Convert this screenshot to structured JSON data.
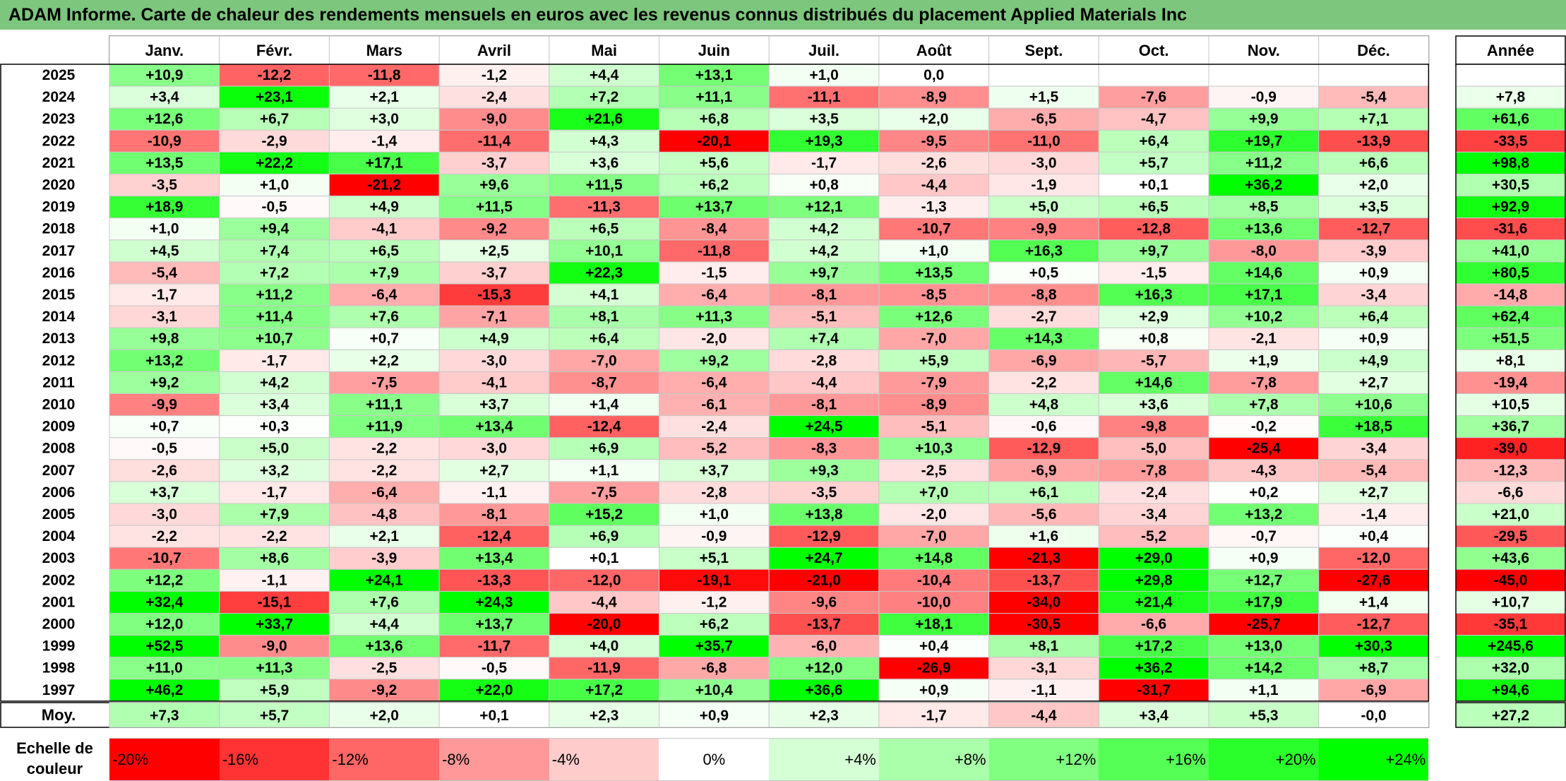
{
  "title": "ADAM Informe. Carte de chaleur des rendements mensuels en euros avec les revenus connus distribués du placement Applied Materials Inc",
  "colors": {
    "title_bg": "#7dc67d",
    "max_red": "#ff0000",
    "neutral": "#ffffff",
    "max_green": "#00ff00"
  },
  "chart_data": {
    "type": "heatmap",
    "months": [
      "Janv.",
      "Févr.",
      "Mars",
      "Avril",
      "Mai",
      "Juin",
      "Juil.",
      "Août",
      "Sept.",
      "Oct.",
      "Nov.",
      "Déc."
    ],
    "year_header": "Année",
    "rows": [
      {
        "year": "2025",
        "values": [
          "+10,9",
          "-12,2",
          "-11,8",
          "-1,2",
          "+4,4",
          "+13,1",
          "+1,0",
          "0,0",
          "",
          "",
          "",
          ""
        ],
        "annual": ""
      },
      {
        "year": "2024",
        "values": [
          "+3,4",
          "+23,1",
          "+2,1",
          "-2,4",
          "+7,2",
          "+11,1",
          "-11,1",
          "-8,9",
          "+1,5",
          "-7,6",
          "-0,9",
          "-5,4"
        ],
        "annual": "+7,8"
      },
      {
        "year": "2023",
        "values": [
          "+12,6",
          "+6,7",
          "+3,0",
          "-9,0",
          "+21,6",
          "+6,8",
          "+3,5",
          "+2,0",
          "-6,5",
          "-4,7",
          "+9,9",
          "+7,1"
        ],
        "annual": "+61,6"
      },
      {
        "year": "2022",
        "values": [
          "-10,9",
          "-2,9",
          "-1,4",
          "-11,4",
          "+4,3",
          "-20,1",
          "+19,3",
          "-9,5",
          "-11,0",
          "+6,4",
          "+19,7",
          "-13,9"
        ],
        "annual": "-33,5"
      },
      {
        "year": "2021",
        "values": [
          "+13,5",
          "+22,2",
          "+17,1",
          "-3,7",
          "+3,6",
          "+5,6",
          "-1,7",
          "-2,6",
          "-3,0",
          "+5,7",
          "+11,2",
          "+6,6"
        ],
        "annual": "+98,8"
      },
      {
        "year": "2020",
        "values": [
          "-3,5",
          "+1,0",
          "-21,2",
          "+9,6",
          "+11,5",
          "+6,2",
          "+0,8",
          "-4,4",
          "-1,9",
          "+0,1",
          "+36,2",
          "+2,0"
        ],
        "annual": "+30,5"
      },
      {
        "year": "2019",
        "values": [
          "+18,9",
          "-0,5",
          "+4,9",
          "+11,5",
          "-11,3",
          "+13,7",
          "+12,1",
          "-1,3",
          "+5,0",
          "+6,5",
          "+8,5",
          "+3,5"
        ],
        "annual": "+92,9"
      },
      {
        "year": "2018",
        "values": [
          "+1,0",
          "+9,4",
          "-4,1",
          "-9,2",
          "+6,5",
          "-8,4",
          "+4,2",
          "-10,7",
          "-9,9",
          "-12,8",
          "+13,6",
          "-12,7"
        ],
        "annual": "-31,6"
      },
      {
        "year": "2017",
        "values": [
          "+4,5",
          "+7,4",
          "+6,5",
          "+2,5",
          "+10,1",
          "-11,8",
          "+4,2",
          "+1,0",
          "+16,3",
          "+9,7",
          "-8,0",
          "-3,9"
        ],
        "annual": "+41,0"
      },
      {
        "year": "2016",
        "values": [
          "-5,4",
          "+7,2",
          "+7,9",
          "-3,7",
          "+22,3",
          "-1,5",
          "+9,7",
          "+13,5",
          "+0,5",
          "-1,5",
          "+14,6",
          "+0,9"
        ],
        "annual": "+80,5"
      },
      {
        "year": "2015",
        "values": [
          "-1,7",
          "+11,2",
          "-6,4",
          "-15,3",
          "+4,1",
          "-6,4",
          "-8,1",
          "-8,5",
          "-8,8",
          "+16,3",
          "+17,1",
          "-3,4"
        ],
        "annual": "-14,8"
      },
      {
        "year": "2014",
        "values": [
          "-3,1",
          "+11,4",
          "+7,6",
          "-7,1",
          "+8,1",
          "+11,3",
          "-5,1",
          "+12,6",
          "-2,7",
          "+2,9",
          "+10,2",
          "+6,4"
        ],
        "annual": "+62,4"
      },
      {
        "year": "2013",
        "values": [
          "+9,8",
          "+10,7",
          "+0,7",
          "+4,9",
          "+6,4",
          "-2,0",
          "+7,4",
          "-7,0",
          "+14,3",
          "+0,8",
          "-2,1",
          "+0,9"
        ],
        "annual": "+51,5"
      },
      {
        "year": "2012",
        "values": [
          "+13,2",
          "-1,7",
          "+2,2",
          "-3,0",
          "-7,0",
          "+9,2",
          "-2,8",
          "+5,9",
          "-6,9",
          "-5,7",
          "+1,9",
          "+4,9"
        ],
        "annual": "+8,1"
      },
      {
        "year": "2011",
        "values": [
          "+9,2",
          "+4,2",
          "-7,5",
          "-4,1",
          "-8,7",
          "-6,4",
          "-4,4",
          "-7,9",
          "-2,2",
          "+14,6",
          "-7,8",
          "+2,7"
        ],
        "annual": "-19,4"
      },
      {
        "year": "2010",
        "values": [
          "-9,9",
          "+3,4",
          "+11,1",
          "+3,7",
          "+1,4",
          "-6,1",
          "-8,1",
          "-8,9",
          "+4,8",
          "+3,6",
          "+7,8",
          "+10,6"
        ],
        "annual": "+10,5"
      },
      {
        "year": "2009",
        "values": [
          "+0,7",
          "+0,3",
          "+11,9",
          "+13,4",
          "-12,4",
          "-2,4",
          "+24,5",
          "-5,1",
          "-0,6",
          "-9,8",
          "-0,2",
          "+18,5"
        ],
        "annual": "+36,7"
      },
      {
        "year": "2008",
        "values": [
          "-0,5",
          "+5,0",
          "-2,2",
          "-3,0",
          "+6,9",
          "-5,2",
          "-8,3",
          "+10,3",
          "-12,9",
          "-5,0",
          "-25,4",
          "-3,4"
        ],
        "annual": "-39,0"
      },
      {
        "year": "2007",
        "values": [
          "-2,6",
          "+3,2",
          "-2,2",
          "+2,7",
          "+1,1",
          "+3,7",
          "+9,3",
          "-2,5",
          "-6,9",
          "-7,8",
          "-4,3",
          "-5,4"
        ],
        "annual": "-12,3"
      },
      {
        "year": "2006",
        "values": [
          "+3,7",
          "-1,7",
          "-6,4",
          "-1,1",
          "-7,5",
          "-2,8",
          "-3,5",
          "+7,0",
          "+6,1",
          "-2,4",
          "+0,2",
          "+2,7"
        ],
        "annual": "-6,6"
      },
      {
        "year": "2005",
        "values": [
          "-3,0",
          "+7,9",
          "-4,8",
          "-8,1",
          "+15,2",
          "+1,0",
          "+13,8",
          "-2,0",
          "-5,6",
          "-3,4",
          "+13,2",
          "-1,4"
        ],
        "annual": "+21,0"
      },
      {
        "year": "2004",
        "values": [
          "-2,2",
          "-2,2",
          "+2,1",
          "-12,4",
          "+6,9",
          "-0,9",
          "-12,9",
          "-7,0",
          "+1,6",
          "-5,2",
          "-0,7",
          "+0,4"
        ],
        "annual": "-29,5"
      },
      {
        "year": "2003",
        "values": [
          "-10,7",
          "+8,6",
          "-3,9",
          "+13,4",
          "+0,1",
          "+5,1",
          "+24,7",
          "+14,8",
          "-21,3",
          "+29,0",
          "+0,9",
          "-12,0"
        ],
        "annual": "+43,6"
      },
      {
        "year": "2002",
        "values": [
          "+12,2",
          "-1,1",
          "+24,1",
          "-13,3",
          "-12,0",
          "-19,1",
          "-21,0",
          "-10,4",
          "-13,7",
          "+29,8",
          "+12,7",
          "-27,6"
        ],
        "annual": "-45,0"
      },
      {
        "year": "2001",
        "values": [
          "+32,4",
          "-15,1",
          "+7,6",
          "+24,3",
          "-4,4",
          "-1,2",
          "-9,6",
          "-10,0",
          "-34,0",
          "+21,4",
          "+17,9",
          "+1,4"
        ],
        "annual": "+10,7"
      },
      {
        "year": "2000",
        "values": [
          "+12,0",
          "+33,7",
          "+4,4",
          "+13,7",
          "-20,0",
          "+6,2",
          "-13,7",
          "+18,1",
          "-30,5",
          "-6,6",
          "-25,7",
          "-12,7"
        ],
        "annual": "-35,1"
      },
      {
        "year": "1999",
        "values": [
          "+52,5",
          "-9,0",
          "+13,6",
          "-11,7",
          "+4,0",
          "+35,7",
          "-6,0",
          "+0,4",
          "+8,1",
          "+17,2",
          "+13,0",
          "+30,3"
        ],
        "annual": "+245,6"
      },
      {
        "year": "1998",
        "values": [
          "+11,0",
          "+11,3",
          "-2,5",
          "-0,5",
          "-11,9",
          "-6,8",
          "+12,0",
          "-26,9",
          "-3,1",
          "+36,2",
          "+14,2",
          "+8,7"
        ],
        "annual": "+32,0"
      },
      {
        "year": "1997",
        "values": [
          "+46,2",
          "+5,9",
          "-9,2",
          "+22,0",
          "+17,2",
          "+10,4",
          "+36,6",
          "+0,9",
          "-1,1",
          "-31,7",
          "+1,1",
          "-6,9"
        ],
        "annual": "+94,6"
      }
    ],
    "average": {
      "label": "Moy.",
      "values": [
        "+7,3",
        "+5,7",
        "+2,0",
        "+0,1",
        "+2,3",
        "+0,9",
        "+2,3",
        "-1,7",
        "-4,4",
        "+3,4",
        "+5,3",
        "-0,0"
      ],
      "annual": "+27,2"
    },
    "legend": {
      "label_line1": "Echelle de",
      "label_line2": "couleur",
      "steps": [
        "-20%",
        "-16%",
        "-12%",
        "-8%",
        "-4%",
        "0%",
        "+4%",
        "+8%",
        "+12%",
        "+16%",
        "+20%",
        "+24%"
      ]
    }
  }
}
